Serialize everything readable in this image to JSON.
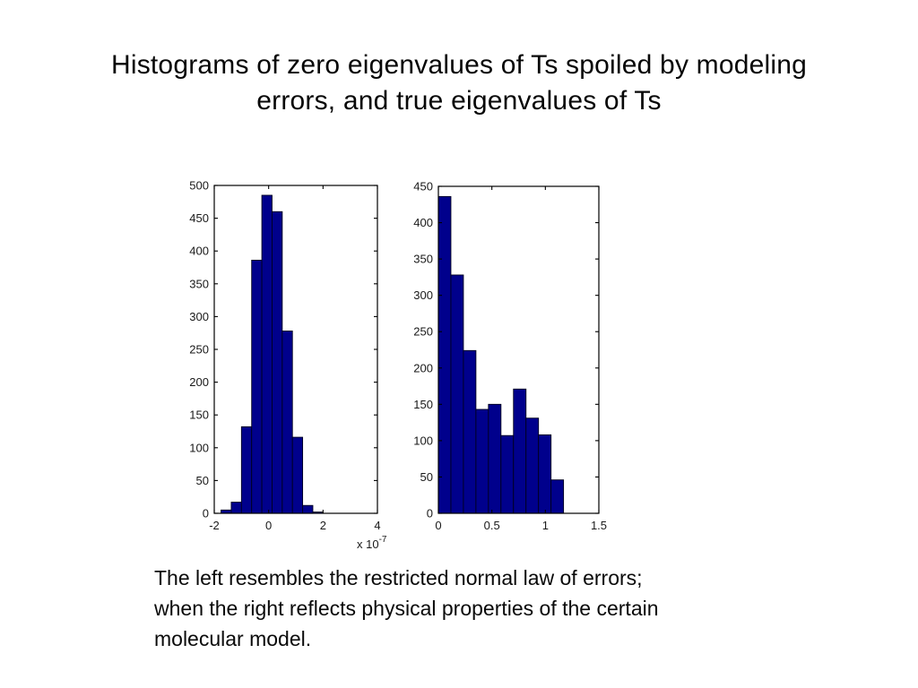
{
  "slide": {
    "title_lines": [
      "Histograms of zero eigenvalues of Ts spoiled by modeling",
      "errors, and true eigenvalues of Ts"
    ],
    "caption_lines": [
      "The left resembles the restricted normal law of errors;",
      "when the right reflects physical properties of the certain",
      "molecular model."
    ]
  },
  "colors": {
    "background": "#FFFFFF",
    "bar_fill": "#00008C",
    "bar_edge": "#00001E",
    "axis": "#000000",
    "tick_label": "#1A1A1A"
  },
  "chart_data": [
    {
      "type": "bar",
      "subtype": "histogram",
      "name": "spoiled-zero-eigenvalues",
      "title": "",
      "xlabel": "",
      "ylabel": "",
      "grid": false,
      "legend": null,
      "bins": {
        "start": -1.75,
        "width": 0.375,
        "count": 10
      },
      "values": [
        5,
        17,
        132,
        386,
        485,
        460,
        278,
        116,
        12,
        2
      ],
      "xlim": [
        -2,
        4
      ],
      "ylim": [
        0,
        500
      ],
      "xticks": [
        -2,
        0,
        2,
        4
      ],
      "yticks": [
        0,
        50,
        100,
        150,
        200,
        250,
        300,
        350,
        400,
        450,
        500
      ],
      "x_scale_label": {
        "prefix": "x 10",
        "exponent": "-7"
      }
    },
    {
      "type": "bar",
      "subtype": "histogram",
      "name": "true-eigenvalues",
      "title": "",
      "xlabel": "",
      "ylabel": "",
      "grid": false,
      "legend": null,
      "bins": {
        "start": 0,
        "width": 0.117,
        "count": 10
      },
      "values": [
        436,
        328,
        224,
        143,
        150,
        107,
        171,
        131,
        108,
        46
      ],
      "xlim": [
        0,
        1.5
      ],
      "ylim": [
        0,
        450
      ],
      "xticks": [
        0,
        0.5,
        1,
        1.5
      ],
      "yticks": [
        0,
        50,
        100,
        150,
        200,
        250,
        300,
        350,
        400,
        450
      ],
      "x_scale_label": null
    }
  ]
}
